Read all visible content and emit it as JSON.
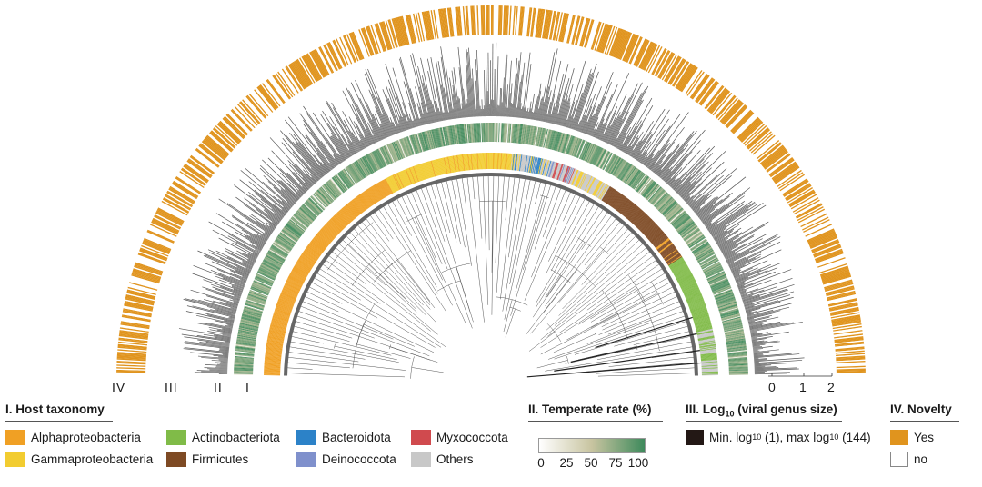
{
  "ring_labels": {
    "iv": "IV",
    "iii": "III",
    "ii": "II",
    "i": "I"
  },
  "size_scale_ticks": [
    "0",
    "1",
    "2"
  ],
  "legend": {
    "host_taxonomy": {
      "title": "I. Host taxonomy",
      "items": [
        {
          "label": "Alphaproteobacteria",
          "color": "#f0a024"
        },
        {
          "label": "Gammaproteobacteria",
          "color": "#f2cc30"
        },
        {
          "label": "Actinobacteriota",
          "color": "#80bb48"
        },
        {
          "label": "Firmicutes",
          "color": "#7e4a24"
        },
        {
          "label": "Bacteroidota",
          "color": "#2c82c8"
        },
        {
          "label": "Deinococcota",
          "color": "#7f90cc"
        },
        {
          "label": "Myxococcota",
          "color": "#d04a4e"
        },
        {
          "label": "Others",
          "color": "#c8c8c8"
        }
      ]
    },
    "temperate_rate": {
      "title": "II. Temperate rate (%)",
      "ticks": [
        "0",
        "25",
        "50",
        "75",
        "100"
      ],
      "color_low": "#ffffff",
      "color_mid": "#c8c4a0",
      "color_high": "#3e8a5c"
    },
    "genus_size": {
      "title_prefix": "III. Log",
      "title_sub": "10",
      "title_suffix": " (viral genus size)",
      "item": {
        "text_a": "Min. log",
        "sub_a": "10",
        "text_b": " (1), max log",
        "sub_b": "10",
        "text_c": " (144)",
        "color": "#231815"
      }
    },
    "novelty": {
      "title": "IV. Novelty",
      "items": [
        {
          "label": "Yes",
          "color": "#e0941e"
        },
        {
          "label": "no",
          "color": "#ffffff"
        }
      ]
    }
  },
  "colors": {
    "tree_line": "#555555",
    "bar_gray": "#555555",
    "novelty_yes": "#e0941e"
  }
}
